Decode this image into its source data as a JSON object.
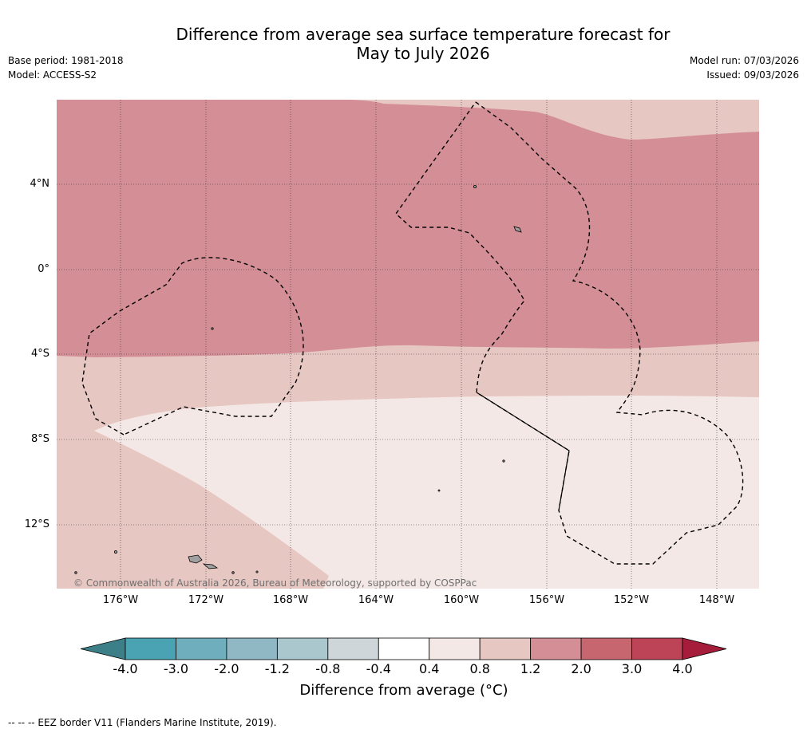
{
  "header": {
    "title_line1": "Difference from average sea surface temperature forecast for",
    "title_line2": "May to July 2026",
    "base_period": "Base period: 1981-2018",
    "model": "Model: ACCESS-S2",
    "model_run": "Model run: 07/03/2026",
    "issued": "Issued: 09/03/2026"
  },
  "map": {
    "lat_labels": [
      "4°N",
      "0°",
      "4°S",
      "8°S",
      "12°S"
    ],
    "lon_labels": [
      "176°W",
      "172°W",
      "168°W",
      "164°W",
      "160°W",
      "156°W",
      "152°W",
      "148°W"
    ],
    "copyright": "© Commonwealth of Australia 2026, Bureau of Meteorology, supported by COSPPac",
    "fill_colors": {
      "band_2_0_to_1_2": "#d48e95",
      "band_1_2_to_0_8": "#e7c7c2",
      "band_0_8_to_0_4": "#f4e8e6",
      "land": "#a0a0a0"
    }
  },
  "colorbar": {
    "ticks": [
      "-4.0",
      "-3.0",
      "-2.0",
      "-1.2",
      "-0.8",
      "-0.4",
      "0.4",
      "0.8",
      "1.2",
      "2.0",
      "3.0",
      "4.0"
    ],
    "colors": [
      "#3d7f89",
      "#4aa3b3",
      "#6faebd",
      "#8fb8c4",
      "#aac7cd",
      "#cfd6d9",
      "#ffffff",
      "#f4e8e6",
      "#e7c7c2",
      "#d48e95",
      "#c8666f",
      "#bd4456",
      "#a51d3a"
    ],
    "label": "Difference from average (°C)"
  },
  "footer": {
    "eez_note": "--  --  -- EEZ border V11 (Flanders Marine Institute, 2019)."
  }
}
